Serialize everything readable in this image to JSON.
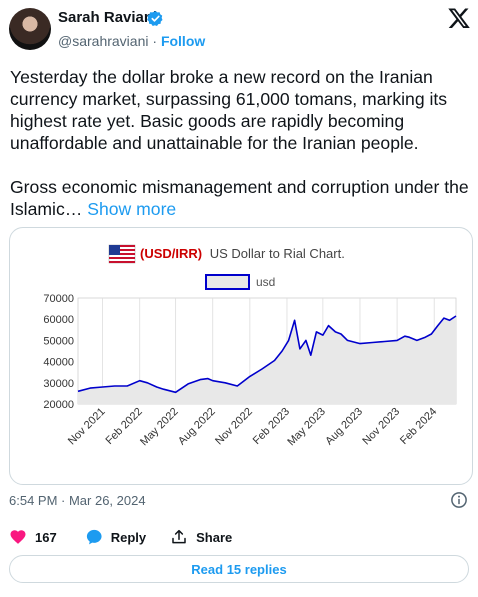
{
  "author": {
    "name": "Sarah Raviani",
    "handle": "@sarahraviani",
    "separator": "·",
    "follow_label": "Follow",
    "verified": true
  },
  "tweet": {
    "paragraph1": "Yesterday the dollar broke a new record on the Iranian currency market, surpassing 61,000 tomans, marking its highest rate yet. Basic goods are rapidly becoming unaffordable and unattainable for the Iranian people.",
    "paragraph2": "Gross economic mismanagement and corruption under the Islamic…",
    "show_more_label": "Show more"
  },
  "timestamp": "6:54 PM · Mar 26, 2024",
  "actions": {
    "like_count": "167",
    "reply_label": "Reply",
    "share_label": "Share"
  },
  "replies_button_label": "Read 15 replies",
  "colors": {
    "accent": "#1d9bf0",
    "like": "#f91880",
    "line": "#0000cc",
    "area": "#e8e8e8",
    "title_red": "#cc0000"
  },
  "icons": {
    "verified": "verified-badge-icon",
    "brand": "x-logo-icon",
    "info": "info-icon",
    "like": "heart-icon",
    "reply": "reply-bubble-icon",
    "share": "share-arrow-icon",
    "flag": "us-flag-icon"
  },
  "chart_data": {
    "type": "area",
    "title_code": "(USD/IRR)",
    "title_text": "US Dollar to Rial Chart.",
    "legend": [
      "usd"
    ],
    "y_ticks": [
      20000,
      30000,
      40000,
      50000,
      60000,
      70000
    ],
    "y_tick_labels": [
      "20000",
      "30000",
      "40000",
      "50000",
      "60000",
      "70000"
    ],
    "ylim": [
      20000,
      70000
    ],
    "x_tick_labels": [
      "Nov 2021",
      "Feb 2022",
      "May 2022",
      "Aug 2022",
      "Nov 2022",
      "Feb 2023",
      "May 2023",
      "Aug 2023",
      "Nov 2023",
      "Feb 2024"
    ],
    "x_tick_dates": [
      "2021-11-01",
      "2022-02-01",
      "2022-05-01",
      "2022-08-01",
      "2022-11-01",
      "2023-02-01",
      "2023-05-01",
      "2023-08-01",
      "2023-11-01",
      "2024-02-01"
    ],
    "xlim": [
      "2021-09-01",
      "2024-03-26"
    ],
    "grid": "vertical",
    "series": [
      {
        "name": "usd",
        "x": [
          "2021-09-01",
          "2021-10-01",
          "2021-11-01",
          "2021-12-01",
          "2022-01-01",
          "2022-02-01",
          "2022-02-20",
          "2022-03-15",
          "2022-04-01",
          "2022-05-01",
          "2022-06-01",
          "2022-07-01",
          "2022-07-20",
          "2022-08-01",
          "2022-09-01",
          "2022-10-01",
          "2022-11-01",
          "2022-12-01",
          "2023-01-01",
          "2023-01-20",
          "2023-02-05",
          "2023-02-20",
          "2023-03-05",
          "2023-03-20",
          "2023-04-01",
          "2023-04-15",
          "2023-05-01",
          "2023-05-15",
          "2023-06-01",
          "2023-06-15",
          "2023-07-01",
          "2023-08-01",
          "2023-09-01",
          "2023-10-01",
          "2023-11-01",
          "2023-11-20",
          "2023-12-01",
          "2023-12-20",
          "2024-01-10",
          "2024-01-25",
          "2024-02-10",
          "2024-02-25",
          "2024-03-10",
          "2024-03-26"
        ],
        "values": [
          26000,
          27500,
          28000,
          28500,
          28500,
          31000,
          30000,
          28000,
          27000,
          25500,
          29500,
          31500,
          32000,
          31000,
          30000,
          28500,
          33000,
          36500,
          40500,
          45000,
          50000,
          59500,
          46000,
          50000,
          43000,
          54000,
          52500,
          57000,
          54000,
          53000,
          50000,
          48500,
          49000,
          49500,
          50000,
          52000,
          51500,
          50000,
          51500,
          53000,
          57000,
          60500,
          59500,
          61500
        ]
      }
    ]
  }
}
